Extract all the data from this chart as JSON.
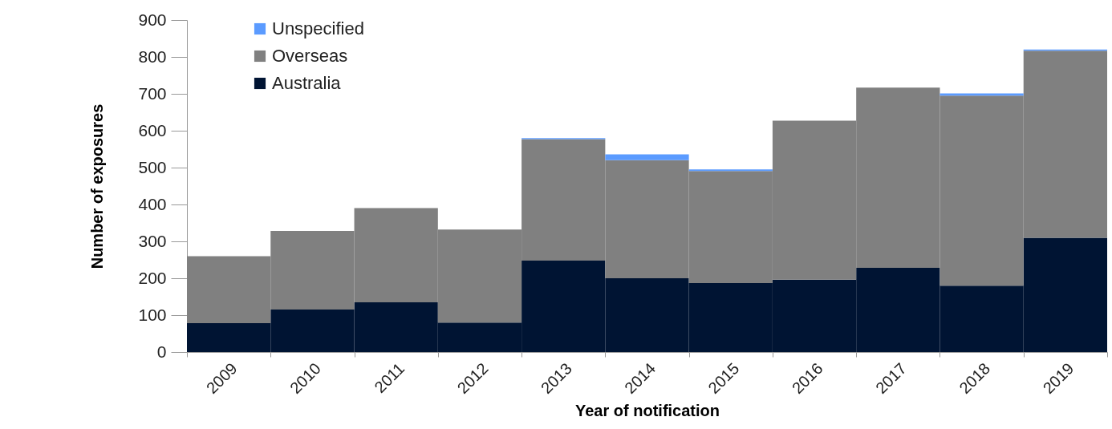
{
  "chart_data": {
    "type": "bar",
    "xlabel": "Year of notification",
    "ylabel": "Number of exposures",
    "categories": [
      "2009",
      "2010",
      "2011",
      "2012",
      "2013",
      "2014",
      "2015",
      "2016",
      "2017",
      "2018",
      "2019"
    ],
    "stacked": true,
    "series": [
      {
        "name": "Australia",
        "color": "#001433",
        "values": [
          78,
          115,
          135,
          80,
          248,
          200,
          187,
          196,
          228,
          180,
          310
        ]
      },
      {
        "name": "Overseas",
        "color": "#808080",
        "values": [
          182,
          213,
          255,
          252,
          329,
          320,
          304,
          431,
          489,
          515,
          507
        ]
      },
      {
        "name": "Unspecified",
        "color": "#5b9bff",
        "values": [
          0,
          0,
          0,
          0,
          3,
          16,
          4,
          0,
          0,
          6,
          3
        ]
      }
    ],
    "ylim": [
      0,
      900
    ],
    "yticks": [
      0,
      100,
      200,
      300,
      400,
      500,
      600,
      700,
      800,
      900
    ],
    "grid": false,
    "legend": "top left"
  }
}
